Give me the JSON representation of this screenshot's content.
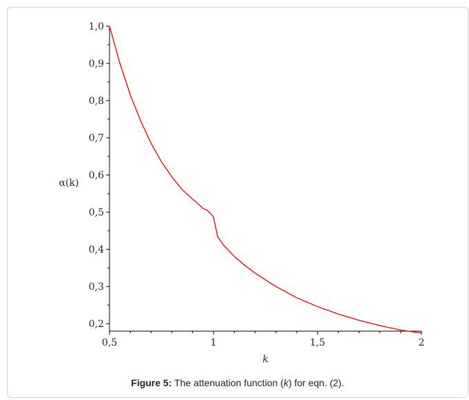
{
  "caption": {
    "label": "Figure 5:",
    "pre": " The attenuation function (",
    "var": "k",
    "post": ") for eqn. (2)."
  },
  "chart_data": {
    "type": "line",
    "xlabel": "k",
    "ylabel": "α(k)",
    "xlim": [
      0.5,
      2.0
    ],
    "ylim": [
      0.18,
      1.0
    ],
    "xticks": [
      {
        "value": 0.5,
        "label": "0,5"
      },
      {
        "value": 1.0,
        "label": "1"
      },
      {
        "value": 1.5,
        "label": "1,5"
      },
      {
        "value": 2.0,
        "label": "2"
      }
    ],
    "yticks": [
      {
        "value": 0.2,
        "label": "0,2"
      },
      {
        "value": 0.3,
        "label": "0,3"
      },
      {
        "value": 0.4,
        "label": "0,4"
      },
      {
        "value": 0.5,
        "label": "0,5"
      },
      {
        "value": 0.6,
        "label": "0,6"
      },
      {
        "value": 0.7,
        "label": "0,7"
      },
      {
        "value": 0.8,
        "label": "0,8"
      },
      {
        "value": 0.9,
        "label": "0,9"
      },
      {
        "value": 1.0,
        "label": "1,0"
      }
    ],
    "grid": false,
    "series": [
      {
        "color": "#e00000",
        "x": [
          0.5,
          0.55,
          0.6,
          0.65,
          0.7,
          0.75,
          0.8,
          0.85,
          0.9,
          0.95,
          0.97,
          1.0,
          1.02,
          1.05,
          1.1,
          1.15,
          1.2,
          1.3,
          1.4,
          1.5,
          1.6,
          1.7,
          1.8,
          1.9,
          2.0
        ],
        "y": [
          1.0,
          0.9,
          0.815,
          0.745,
          0.685,
          0.635,
          0.595,
          0.56,
          0.535,
          0.51,
          0.505,
          0.487,
          0.434,
          0.41,
          0.381,
          0.357,
          0.336,
          0.3,
          0.27,
          0.246,
          0.226,
          0.209,
          0.195,
          0.183,
          0.175
        ]
      }
    ]
  }
}
